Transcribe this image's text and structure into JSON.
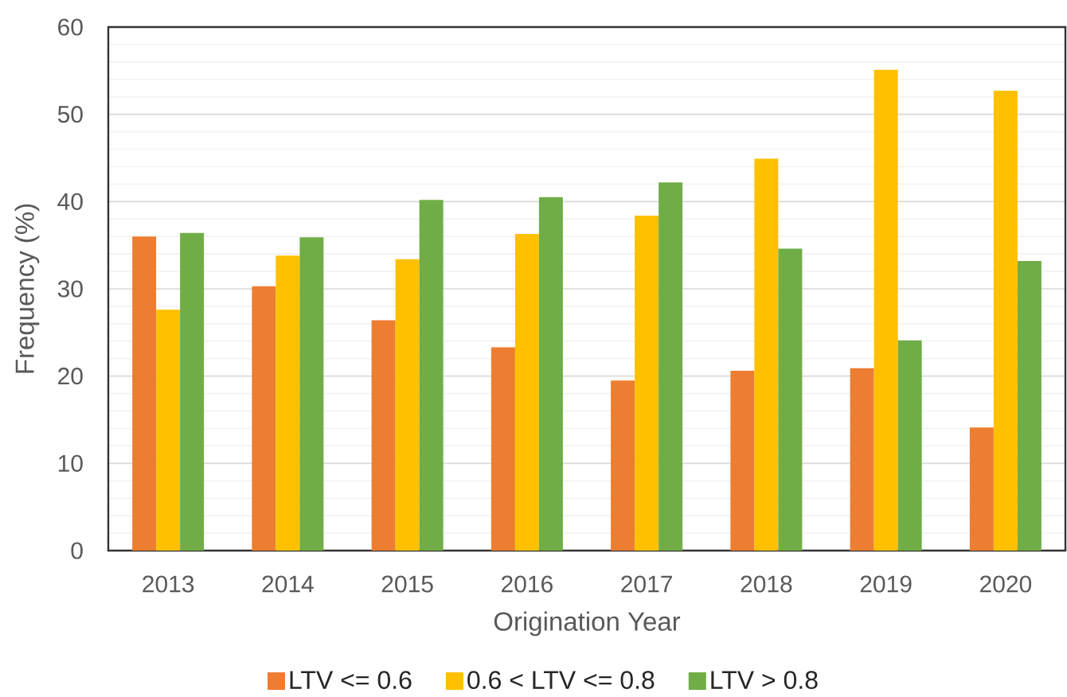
{
  "chart_data": {
    "type": "bar",
    "xlabel": "Origination Year",
    "ylabel": "Frequency (%)",
    "categories": [
      "2013",
      "2014",
      "2015",
      "2016",
      "2017",
      "2018",
      "2019",
      "2020"
    ],
    "series": [
      {
        "name": "LTV <= 0.6",
        "color": "#ed7d31",
        "values": [
          36.0,
          30.3,
          26.4,
          23.3,
          19.5,
          20.6,
          20.9,
          14.1
        ]
      },
      {
        "name": "0.6 < LTV <= 0.8",
        "color": "#ffc000",
        "values": [
          27.6,
          33.8,
          33.4,
          36.3,
          38.4,
          44.9,
          55.1,
          52.7
        ]
      },
      {
        "name": "LTV > 0.8",
        "color": "#70ad47",
        "values": [
          36.4,
          35.9,
          40.2,
          40.5,
          42.2,
          34.6,
          24.1,
          33.2
        ]
      }
    ],
    "ylim": [
      0,
      60
    ],
    "yticks": [
      0,
      10,
      20,
      30,
      40,
      50,
      60
    ],
    "grid": "y",
    "legend": "bottom"
  }
}
